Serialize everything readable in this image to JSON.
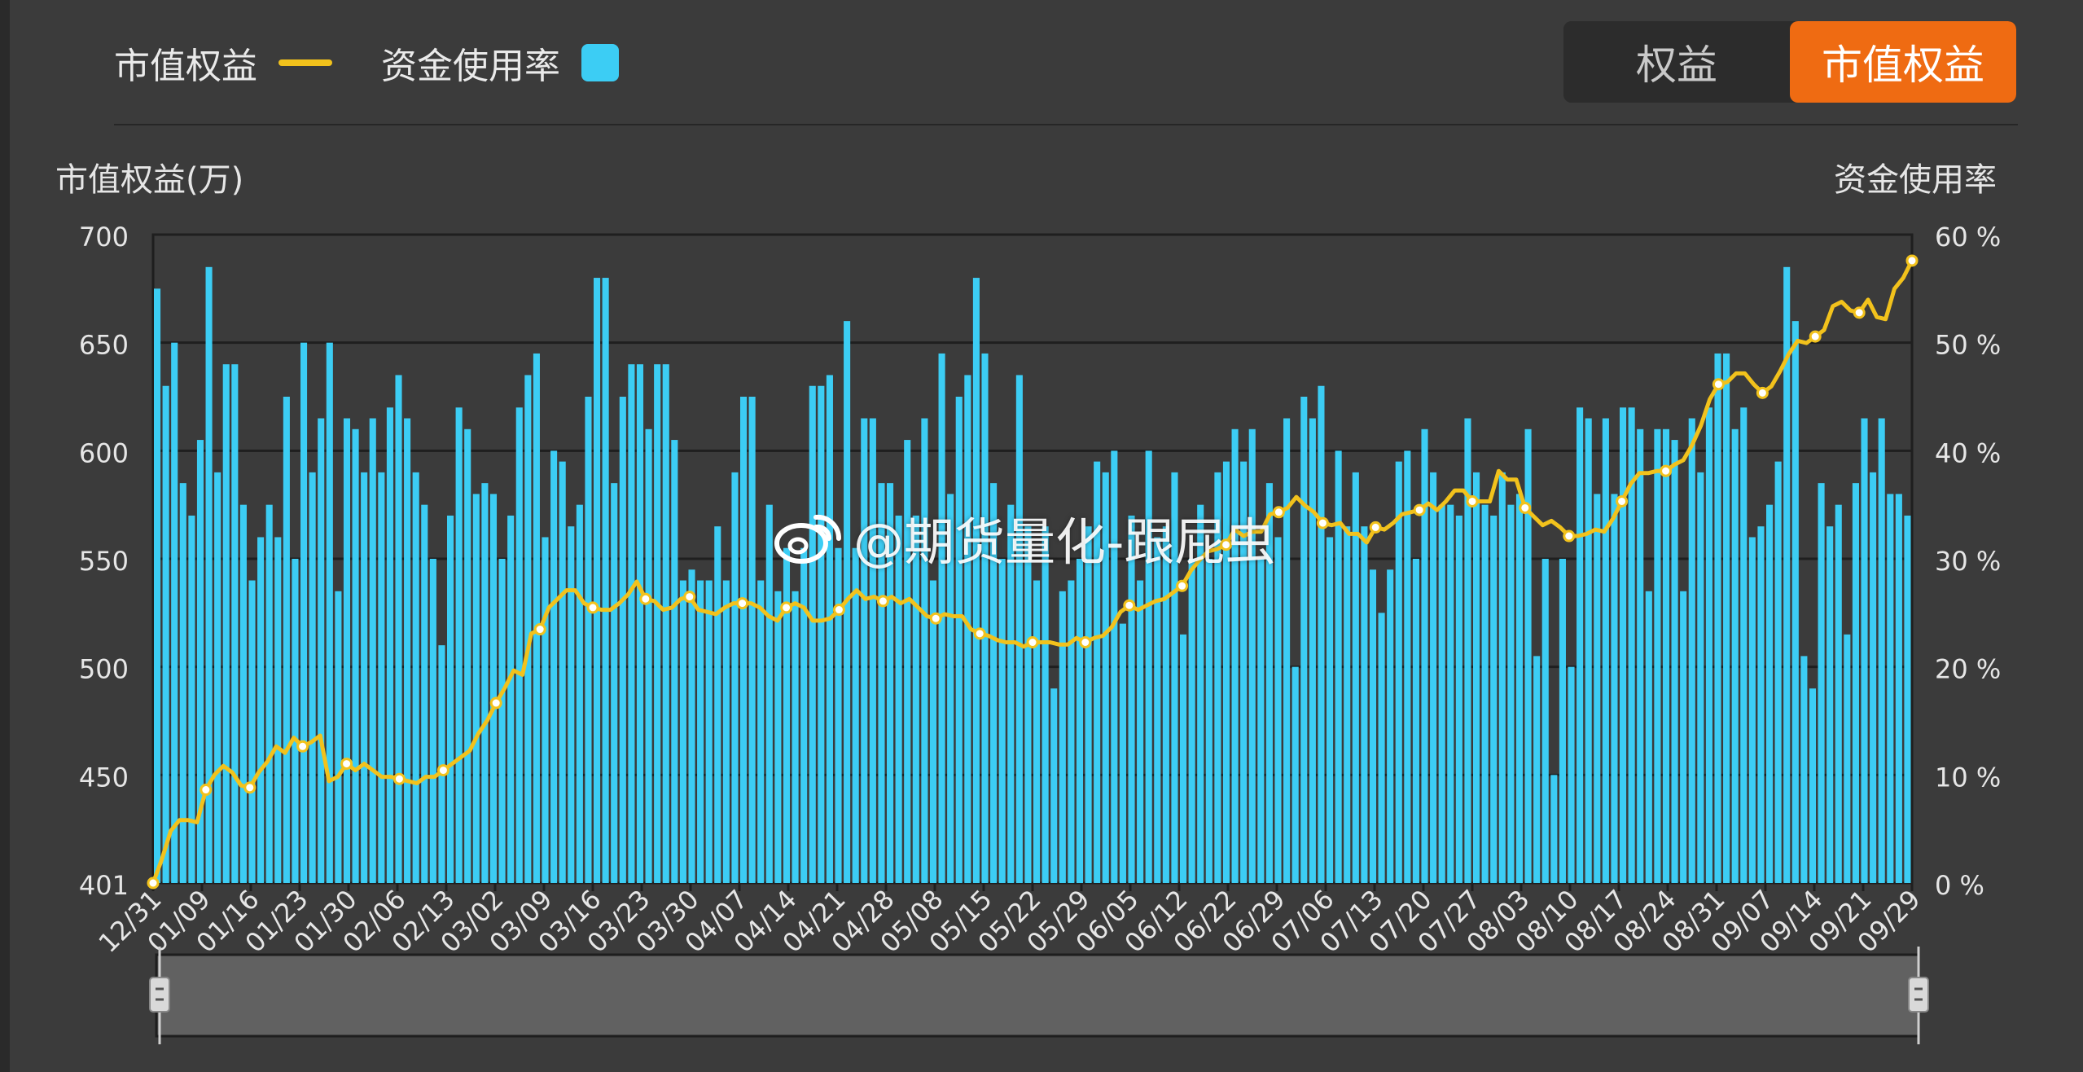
{
  "legend": {
    "line_label": "市值权益",
    "bar_label": "资金使用率",
    "line_color": "#f2c21c",
    "bar_color": "#3ccdf4"
  },
  "toggle": {
    "option_1": "权益",
    "option_2": "市值权益",
    "active_color": "#ef6b12"
  },
  "watermark": {
    "text": "@期货量化-跟屁虫",
    "icon": "weibo-icon"
  },
  "chart_data": {
    "type": "bar+line",
    "ylabel_left": "市值权益(万)",
    "ylabel_right": "资金使用率",
    "left_axis": {
      "min": 401,
      "max": 700,
      "ticks": [
        "700",
        "650",
        "600",
        "550",
        "500",
        "450",
        "401"
      ]
    },
    "right_axis": {
      "min": 0,
      "max": 60,
      "ticks": [
        "60 %",
        "50 %",
        "40 %",
        "30 %",
        "20 %",
        "10 %",
        "0 %"
      ]
    },
    "x_tick_labels": [
      "12/31",
      "01/09",
      "01/16",
      "01/23",
      "01/30",
      "02/06",
      "02/13",
      "03/02",
      "03/09",
      "03/16",
      "03/23",
      "03/30",
      "04/07",
      "04/14",
      "04/21",
      "04/28",
      "05/08",
      "05/15",
      "05/22",
      "05/29",
      "06/05",
      "06/12",
      "06/22",
      "06/29",
      "07/06",
      "07/13",
      "07/20",
      "07/27",
      "08/03",
      "08/10",
      "08/17",
      "08/24",
      "08/31",
      "09/07",
      "09/14",
      "09/21",
      "09/29"
    ],
    "bar_series": {
      "name": "资金使用率",
      "unit": "%",
      "values": [
        55,
        46,
        50,
        37,
        34,
        41,
        57,
        38,
        48,
        48,
        35,
        28,
        32,
        35,
        32,
        45,
        30,
        50,
        38,
        43,
        50,
        27,
        43,
        42,
        38,
        43,
        38,
        44,
        47,
        43,
        38,
        35,
        30,
        22,
        34,
        44,
        42,
        36,
        37,
        36,
        30,
        34,
        44,
        47,
        49,
        32,
        40,
        39,
        33,
        35,
        45,
        56,
        56,
        37,
        45,
        48,
        48,
        42,
        48,
        48,
        41,
        28,
        29,
        28,
        28,
        33,
        28,
        38,
        45,
        45,
        28,
        35,
        27,
        31,
        27,
        31,
        46,
        46,
        47,
        31,
        52,
        31,
        43,
        43,
        37,
        37,
        34,
        41,
        34,
        43,
        28,
        49,
        36,
        45,
        47,
        56,
        49,
        37,
        30,
        35,
        47,
        33,
        28,
        33,
        18,
        27,
        28,
        30,
        33,
        39,
        38,
        40,
        24,
        34,
        28,
        40,
        32,
        33,
        38,
        23,
        30,
        35,
        30,
        38,
        39,
        42,
        39,
        42,
        30,
        37,
        32,
        43,
        20,
        45,
        43,
        46,
        32,
        40,
        33,
        38,
        33,
        29,
        25,
        29,
        39,
        40,
        30,
        42,
        38,
        35,
        35,
        34,
        43,
        38,
        35,
        34,
        38,
        35,
        36,
        42,
        21,
        30,
        10,
        30,
        20,
        44,
        43,
        36,
        43,
        36,
        44,
        44,
        42,
        27,
        42,
        42,
        41,
        27,
        43,
        38,
        44,
        49,
        49,
        42,
        44,
        32,
        33,
        35,
        39,
        57,
        52,
        21,
        18,
        37,
        33,
        35,
        23,
        37,
        43,
        38,
        43,
        36,
        36,
        34
      ]
    },
    "line_series": {
      "name": "市值权益",
      "unit": "万",
      "values": [
        401,
        412,
        425,
        430,
        430,
        429,
        444,
        451,
        455,
        452,
        446,
        445,
        452,
        457,
        464,
        461,
        468,
        464,
        466,
        469,
        448,
        450,
        456,
        453,
        456,
        453,
        450,
        450,
        449,
        448,
        447,
        450,
        450,
        453,
        456,
        459,
        462,
        470,
        476,
        484,
        491,
        499,
        497,
        516,
        518,
        528,
        532,
        536,
        536,
        530,
        528,
        527,
        527,
        530,
        534,
        540,
        532,
        531,
        527,
        528,
        532,
        533,
        527,
        526,
        525,
        528,
        530,
        530,
        530,
        528,
        524,
        522,
        528,
        530,
        528,
        522,
        522,
        523,
        527,
        532,
        536,
        532,
        533,
        531,
        533,
        530,
        532,
        528,
        524,
        523,
        525,
        524,
        524,
        518,
        516,
        515,
        513,
        512,
        512,
        510,
        512,
        512,
        512,
        511,
        511,
        514,
        512,
        514,
        515,
        519,
        526,
        529,
        527,
        529,
        531,
        532,
        535,
        538,
        545,
        550,
        554,
        555,
        557,
        564,
        561,
        563,
        563,
        571,
        572,
        574,
        579,
        575,
        572,
        567,
        566,
        567,
        562,
        562,
        558,
        565,
        564,
        567,
        571,
        572,
        573,
        576,
        573,
        577,
        582,
        582,
        577,
        577,
        577,
        591,
        587,
        587,
        574,
        570,
        566,
        568,
        565,
        561,
        561,
        562,
        564,
        563,
        569,
        577,
        585,
        590,
        590,
        591,
        591,
        594,
        596,
        603,
        612,
        624,
        631,
        632,
        636,
        636,
        631,
        627,
        630,
        637,
        645,
        651,
        650,
        653,
        656,
        667,
        669,
        665,
        664,
        670,
        662,
        661,
        675,
        680,
        688
      ]
    }
  }
}
